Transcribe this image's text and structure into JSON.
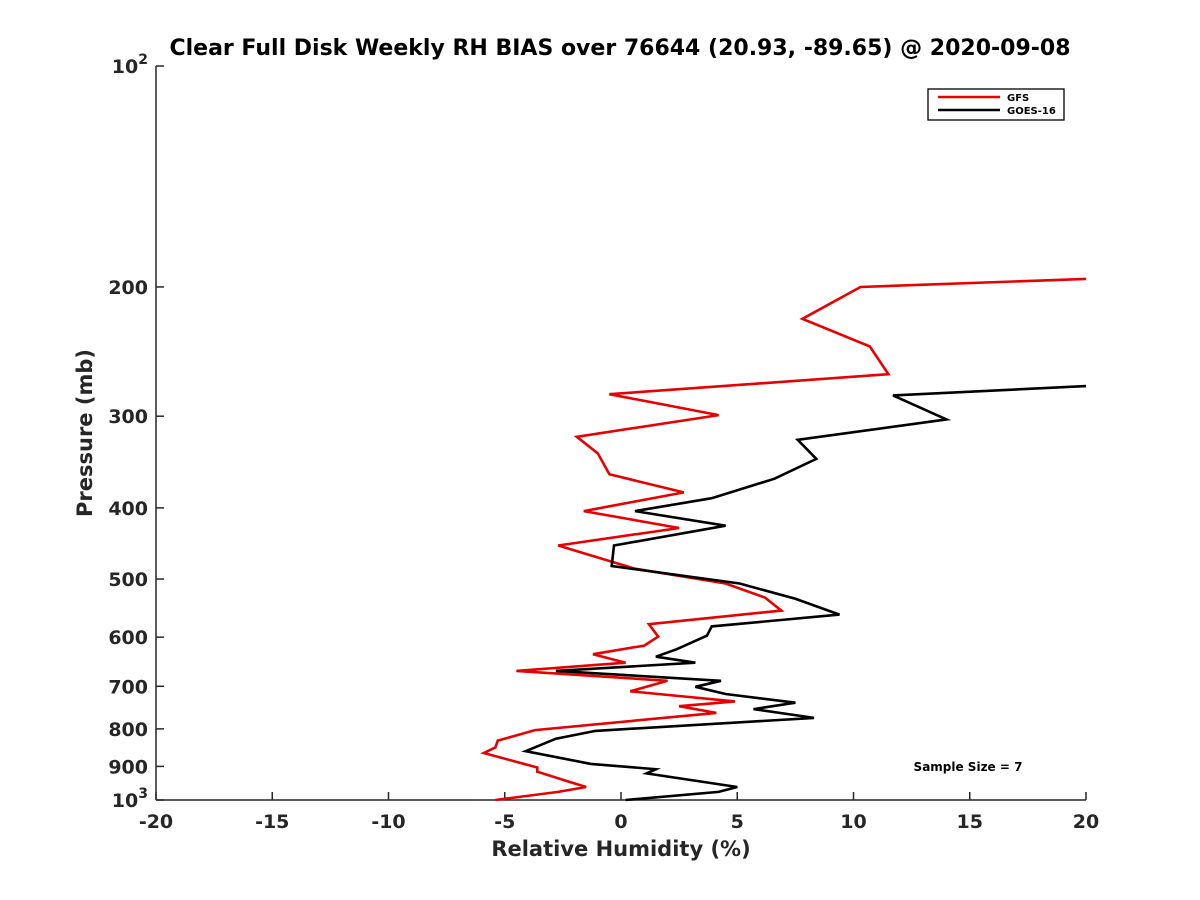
{
  "chart_data": {
    "type": "line",
    "title": "Clear Full Disk Weekly RH BIAS over 76644 (20.93, -89.65) @ 2020-09-08",
    "xlabel": "Relative Humidity (%)",
    "ylabel": "Pressure (mb)",
    "xlim": [
      -20,
      20
    ],
    "ylim": [
      100,
      1000
    ],
    "yscale": "log",
    "yreversed": true,
    "x_ticks": [
      {
        "value": -20,
        "label": "-20"
      },
      {
        "value": -15,
        "label": "-15"
      },
      {
        "value": -10,
        "label": "-10"
      },
      {
        "value": -5,
        "label": "-5"
      },
      {
        "value": 0,
        "label": "0"
      },
      {
        "value": 5,
        "label": "5"
      },
      {
        "value": 10,
        "label": "10"
      },
      {
        "value": 15,
        "label": "15"
      },
      {
        "value": 20,
        "label": "20"
      }
    ],
    "y_ticks": [
      {
        "value": 100,
        "label": "10",
        "sup": "2"
      },
      {
        "value": 200,
        "label": "200"
      },
      {
        "value": 300,
        "label": "300"
      },
      {
        "value": 400,
        "label": "400"
      },
      {
        "value": 500,
        "label": "500"
      },
      {
        "value": 600,
        "label": "600"
      },
      {
        "value": 700,
        "label": "700"
      },
      {
        "value": 800,
        "label": "800"
      },
      {
        "value": 900,
        "label": "900"
      },
      {
        "value": 1000,
        "label": "10",
        "sup": "3"
      }
    ],
    "legend": {
      "position": "top-right"
    },
    "annotation": "Sample Size = 7",
    "series": [
      {
        "name": "GFS",
        "color": "#e60000",
        "points": [
          [
            20,
            195
          ],
          [
            10.3,
            200
          ],
          [
            7.8,
            221
          ],
          [
            10.7,
            241
          ],
          [
            11.5,
            263
          ],
          [
            -0.5,
            280
          ],
          [
            4.2,
            299
          ],
          [
            -1.9,
            320
          ],
          [
            -1.0,
            337
          ],
          [
            -0.5,
            360
          ],
          [
            2.7,
            381
          ],
          [
            -1.6,
            404
          ],
          [
            2.5,
            426
          ],
          [
            -2.7,
            450
          ],
          [
            0.6,
            484
          ],
          [
            4.5,
            507
          ],
          [
            6.2,
            530
          ],
          [
            6.9,
            552
          ],
          [
            1.2,
            576
          ],
          [
            1.6,
            599
          ],
          [
            1.0,
            616
          ],
          [
            -1.2,
            633
          ],
          [
            0.2,
            650
          ],
          [
            -4.5,
            667
          ],
          [
            2.0,
            688
          ],
          [
            0.4,
            711
          ],
          [
            4.9,
            734
          ],
          [
            2.5,
            745
          ],
          [
            4.1,
            761
          ],
          [
            -3.7,
            803
          ],
          [
            -5.3,
            830
          ],
          [
            -5.4,
            848
          ],
          [
            -5.9,
            863
          ],
          [
            -3.6,
            903
          ],
          [
            -3.6,
            915
          ],
          [
            -2.2,
            945
          ],
          [
            -1.5,
            960
          ],
          [
            -2.7,
            975
          ],
          [
            -5.4,
            1000
          ]
        ]
      },
      {
        "name": "GOES-16",
        "color": "#000000",
        "points": [
          [
            20,
            273
          ],
          [
            11.7,
            281
          ],
          [
            14.0,
            303
          ],
          [
            7.6,
            323
          ],
          [
            8.4,
            343
          ],
          [
            6.6,
            365
          ],
          [
            3.9,
            388
          ],
          [
            0.6,
            404
          ],
          [
            4.5,
            423
          ],
          [
            -0.3,
            450
          ],
          [
            -0.4,
            480
          ],
          [
            5.1,
            507
          ],
          [
            7.5,
            532
          ],
          [
            9.4,
            559
          ],
          [
            3.9,
            580
          ],
          [
            3.7,
            597
          ],
          [
            2.4,
            623
          ],
          [
            1.5,
            638
          ],
          [
            3.2,
            650
          ],
          [
            -2.8,
            667
          ],
          [
            4.3,
            688
          ],
          [
            3.2,
            701
          ],
          [
            4.5,
            717
          ],
          [
            7.5,
            737
          ],
          [
            5.7,
            752
          ],
          [
            8.3,
            773
          ],
          [
            -1.1,
            805
          ],
          [
            -2.8,
            825
          ],
          [
            -4.1,
            858
          ],
          [
            -1.3,
            893
          ],
          [
            1.5,
            908
          ],
          [
            1.1,
            920
          ],
          [
            5.0,
            960
          ],
          [
            4.2,
            975
          ],
          [
            0.2,
            1000
          ]
        ]
      }
    ]
  }
}
